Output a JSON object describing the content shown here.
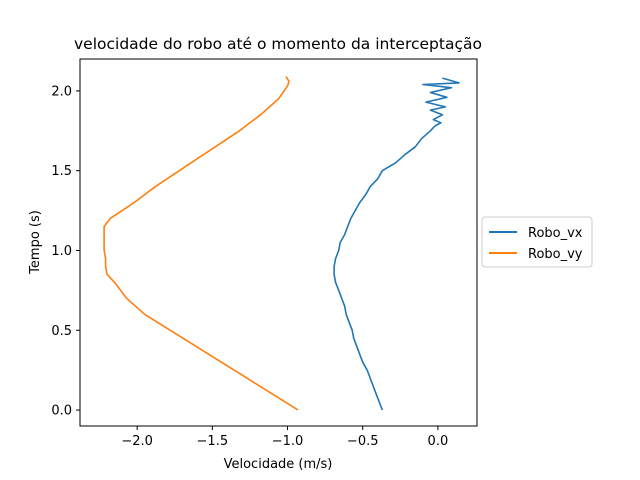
{
  "chart_data": {
    "type": "line",
    "title": "velocidade do robo até o momento da interceptação",
    "xlabel": "Velocidade (m/s)",
    "ylabel": "Tempo (s)",
    "xlim": [
      -2.38,
      0.26
    ],
    "ylim": [
      -0.1,
      2.2
    ],
    "xticks": [
      -2.0,
      -1.5,
      -1.0,
      -0.5,
      0.0
    ],
    "xtick_labels": [
      "−2.0",
      "−1.5",
      "−1.0",
      "−0.5",
      "0.0"
    ],
    "yticks": [
      0.0,
      0.5,
      1.0,
      1.5,
      2.0
    ],
    "ytick_labels": [
      "0.0",
      "0.5",
      "1.0",
      "1.5",
      "2.0"
    ],
    "grid": false,
    "legend_position": "right, outside plot",
    "series": [
      {
        "name": "Robo_vx",
        "color": "#1f77b4",
        "points": [
          [
            -0.37,
            0.0
          ],
          [
            -0.39,
            0.05
          ],
          [
            -0.41,
            0.1
          ],
          [
            -0.43,
            0.15
          ],
          [
            -0.45,
            0.2
          ],
          [
            -0.47,
            0.25
          ],
          [
            -0.5,
            0.3
          ],
          [
            -0.52,
            0.35
          ],
          [
            -0.54,
            0.4
          ],
          [
            -0.56,
            0.45
          ],
          [
            -0.57,
            0.5
          ],
          [
            -0.59,
            0.55
          ],
          [
            -0.61,
            0.6
          ],
          [
            -0.62,
            0.65
          ],
          [
            -0.64,
            0.7
          ],
          [
            -0.66,
            0.75
          ],
          [
            -0.68,
            0.8
          ],
          [
            -0.69,
            0.85
          ],
          [
            -0.69,
            0.9
          ],
          [
            -0.68,
            0.95
          ],
          [
            -0.66,
            1.0
          ],
          [
            -0.65,
            1.05
          ],
          [
            -0.62,
            1.1
          ],
          [
            -0.6,
            1.15
          ],
          [
            -0.58,
            1.2
          ],
          [
            -0.55,
            1.25
          ],
          [
            -0.52,
            1.3
          ],
          [
            -0.48,
            1.35
          ],
          [
            -0.45,
            1.4
          ],
          [
            -0.4,
            1.45
          ],
          [
            -0.37,
            1.5
          ],
          [
            -0.28,
            1.55
          ],
          [
            -0.22,
            1.6
          ],
          [
            -0.15,
            1.65
          ],
          [
            -0.11,
            1.7
          ],
          [
            -0.05,
            1.75
          ],
          [
            -0.02,
            1.78
          ],
          [
            0.02,
            1.8
          ],
          [
            -0.03,
            1.82
          ],
          [
            0.03,
            1.85
          ],
          [
            -0.05,
            1.88
          ],
          [
            0.05,
            1.9
          ],
          [
            -0.08,
            1.93
          ],
          [
            0.06,
            1.96
          ],
          [
            -0.05,
            1.99
          ],
          [
            0.09,
            2.02
          ],
          [
            -0.1,
            2.04
          ],
          [
            0.14,
            2.05
          ],
          [
            0.03,
            2.08
          ]
        ]
      },
      {
        "name": "Robo_vy",
        "color": "#ff7f0e",
        "points": [
          [
            -0.93,
            0.0
          ],
          [
            -1.1,
            0.1
          ],
          [
            -1.27,
            0.2
          ],
          [
            -1.44,
            0.3
          ],
          [
            -1.61,
            0.4
          ],
          [
            -1.78,
            0.5
          ],
          [
            -1.95,
            0.6
          ],
          [
            -2.07,
            0.7
          ],
          [
            -2.15,
            0.8
          ],
          [
            -2.2,
            0.85
          ],
          [
            -2.21,
            0.9
          ],
          [
            -2.21,
            0.95
          ],
          [
            -2.22,
            1.0
          ],
          [
            -2.22,
            1.05
          ],
          [
            -2.22,
            1.1
          ],
          [
            -2.22,
            1.15
          ],
          [
            -2.18,
            1.2
          ],
          [
            -2.1,
            1.25
          ],
          [
            -2.02,
            1.3
          ],
          [
            -1.95,
            1.35
          ],
          [
            -1.88,
            1.4
          ],
          [
            -1.8,
            1.45
          ],
          [
            -1.72,
            1.5
          ],
          [
            -1.64,
            1.55
          ],
          [
            -1.56,
            1.6
          ],
          [
            -1.48,
            1.65
          ],
          [
            -1.4,
            1.7
          ],
          [
            -1.32,
            1.75
          ],
          [
            -1.25,
            1.8
          ],
          [
            -1.18,
            1.85
          ],
          [
            -1.12,
            1.9
          ],
          [
            -1.06,
            1.95
          ],
          [
            -1.0,
            2.03
          ],
          [
            -0.99,
            2.06
          ],
          [
            -1.01,
            2.09
          ]
        ]
      }
    ]
  }
}
